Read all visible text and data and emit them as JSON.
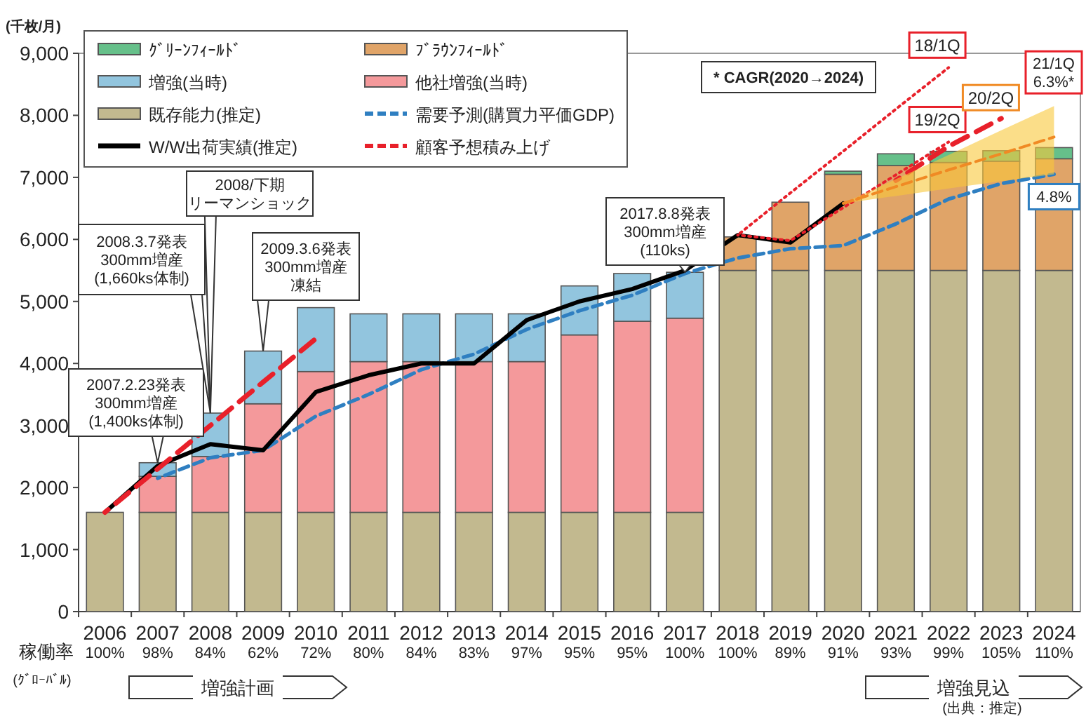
{
  "chart_data": {
    "type": "bar",
    "stacked": true,
    "ylabel": "(千枚/月)",
    "legend": "top left",
    "categories": [
      "2006",
      "2007",
      "2008",
      "2009",
      "2010",
      "2011",
      "2012",
      "2013",
      "2014",
      "2015",
      "2016",
      "2017",
      "2018",
      "2019",
      "2020",
      "2021",
      "2022",
      "2023",
      "2024"
    ],
    "ylim": [
      0,
      9000
    ],
    "yticks": [
      {
        "value": 0,
        "label": "0"
      },
      {
        "value": 1000,
        "label": "1,000"
      },
      {
        "value": 2000,
        "label": "2,000"
      },
      {
        "value": 3000,
        "label": "3,000"
      },
      {
        "value": 4000,
        "label": "4,000"
      },
      {
        "value": 5000,
        "label": "5,000"
      },
      {
        "value": 6000,
        "label": "6,000"
      },
      {
        "value": 7000,
        "label": "7,000"
      },
      {
        "value": 8000,
        "label": "8,000"
      },
      {
        "value": 9000,
        "label": "9,000"
      }
    ],
    "series": [
      {
        "name": "既存能力(推定)",
        "color": "#c2b98f",
        "values": [
          1600,
          1600,
          1600,
          1600,
          1600,
          1600,
          1600,
          1600,
          1600,
          1600,
          1600,
          1600,
          5500,
          5500,
          5500,
          5500,
          5500,
          5500,
          5500
        ]
      },
      {
        "name": "他社増強(当時)",
        "color": "#f4999b",
        "values": [
          null,
          580,
          900,
          1750,
          2270,
          2430,
          2430,
          2430,
          2430,
          2860,
          3080,
          3130,
          null,
          null,
          null,
          null,
          null,
          null,
          null
        ]
      },
      {
        "name": "増強(当時)",
        "color": "#92c5de",
        "values": [
          null,
          220,
          700,
          850,
          1030,
          770,
          770,
          770,
          770,
          790,
          770,
          740,
          null,
          null,
          null,
          null,
          null,
          null,
          null
        ]
      },
      {
        "name": "ﾌﾞﾗｳﾝﾌｨｰﾙﾄﾞ",
        "color": "#e0a468",
        "values": [
          null,
          null,
          null,
          null,
          null,
          null,
          null,
          null,
          null,
          null,
          null,
          null,
          540,
          1100,
          1550,
          1690,
          1740,
          1760,
          1800
        ]
      },
      {
        "name": "ｸﾞﾘｰﾝﾌｨｰﾙﾄﾞ",
        "color": "#66c08a",
        "values": [
          null,
          null,
          null,
          null,
          null,
          null,
          null,
          null,
          null,
          null,
          null,
          null,
          null,
          null,
          50,
          190,
          180,
          170,
          180
        ]
      },
      {
        "name": "需要予測(購買力平価GDP)",
        "type": "line",
        "line_style": "dashed",
        "color": "#2f7fc1",
        "values": [
          null,
          2150,
          2480,
          2600,
          3150,
          3500,
          3900,
          4150,
          4550,
          4850,
          5100,
          5450,
          5700,
          5850,
          5900,
          6250,
          6650,
          6900,
          7050
        ]
      },
      {
        "name": "W/W出荷実績(推定)",
        "type": "line",
        "line_style": "solid",
        "color": "#000000",
        "values": [
          1600,
          2350,
          2700,
          2600,
          3540,
          3810,
          4000,
          4000,
          4700,
          5000,
          5200,
          5500,
          6070,
          5950,
          6580,
          null,
          null,
          null,
          null
        ]
      },
      {
        "name": "顧客予想積み上げ",
        "type": "line",
        "line_style": "dashed",
        "color": "#e8202a",
        "values": [
          1600,
          2300,
          3000,
          3700,
          4400,
          null,
          null,
          null,
          null,
          null,
          null,
          null,
          null,
          null,
          null,
          6950,
          7500,
          7950,
          null
        ]
      },
      {
        "name": "18/1Q",
        "type": "line",
        "line_style": "dotted",
        "color": "#e8202a",
        "values": [
          null,
          null,
          null,
          null,
          null,
          null,
          null,
          null,
          null,
          null,
          null,
          null,
          6070,
          6750,
          7420,
          8100,
          8770,
          null,
          null
        ]
      },
      {
        "name": "19/2Q",
        "type": "line",
        "line_style": "dotted",
        "color": "#e8202a",
        "values": [
          null,
          null,
          null,
          null,
          null,
          null,
          null,
          null,
          null,
          null,
          null,
          null,
          6070,
          5980,
          6510,
          7040,
          7570,
          null,
          null
        ]
      },
      {
        "name": "20/2Q",
        "type": "line",
        "line_style": "dashed",
        "color": "#f08a24",
        "values": [
          null,
          null,
          null,
          null,
          null,
          null,
          null,
          null,
          null,
          null,
          null,
          null,
          null,
          null,
          6580,
          6850,
          7120,
          7380,
          7650
        ],
        "lower": [
          null,
          null,
          null,
          null,
          null,
          null,
          null,
          null,
          null,
          null,
          null,
          null,
          null,
          null,
          6580,
          6700,
          6820,
          6940,
          7050
        ],
        "upper": [
          null,
          null,
          null,
          null,
          null,
          null,
          null,
          null,
          null,
          null,
          null,
          null,
          null,
          null,
          6580,
          6970,
          7360,
          7760,
          8150
        ]
      }
    ],
    "annotations": [
      "* CAGR(2020→2024)",
      "稼働率",
      "(ｸﾞﾛｰﾊﾞﾙ)",
      "増強計画",
      "増強見込",
      "(出典：推定)",
      {
        "text": "2007.2.23発表300mm増産(1,400ks体制)",
        "x": "2007",
        "y": 2400
      },
      {
        "text": "2008.3.7発表300mm増産(1,660ks体制)",
        "x": "2008",
        "y": 3200
      },
      {
        "text": "2008/下期リーマンショック",
        "x": "2008",
        "y": 3200
      },
      {
        "text": "2009.3.6発表300mm増産凍結",
        "x": "2009",
        "y": 4200
      },
      {
        "text": "2017.8.8発表300mm増産(110ks)",
        "x": "2017",
        "y": 5470
      },
      {
        "text": "21/1Q 6.3%*",
        "x": "2024",
        "y": 8150
      },
      {
        "text": "4.8%",
        "x": "2024",
        "y": 7050
      },
      "100%",
      "98%",
      "84%",
      "62%",
      "72%",
      "80%",
      "84%",
      "83%",
      "97%",
      "95%",
      "95%",
      "100%",
      "100%",
      "89%",
      "91%",
      "93%",
      "99%",
      "105%",
      "110%"
    ]
  }
}
